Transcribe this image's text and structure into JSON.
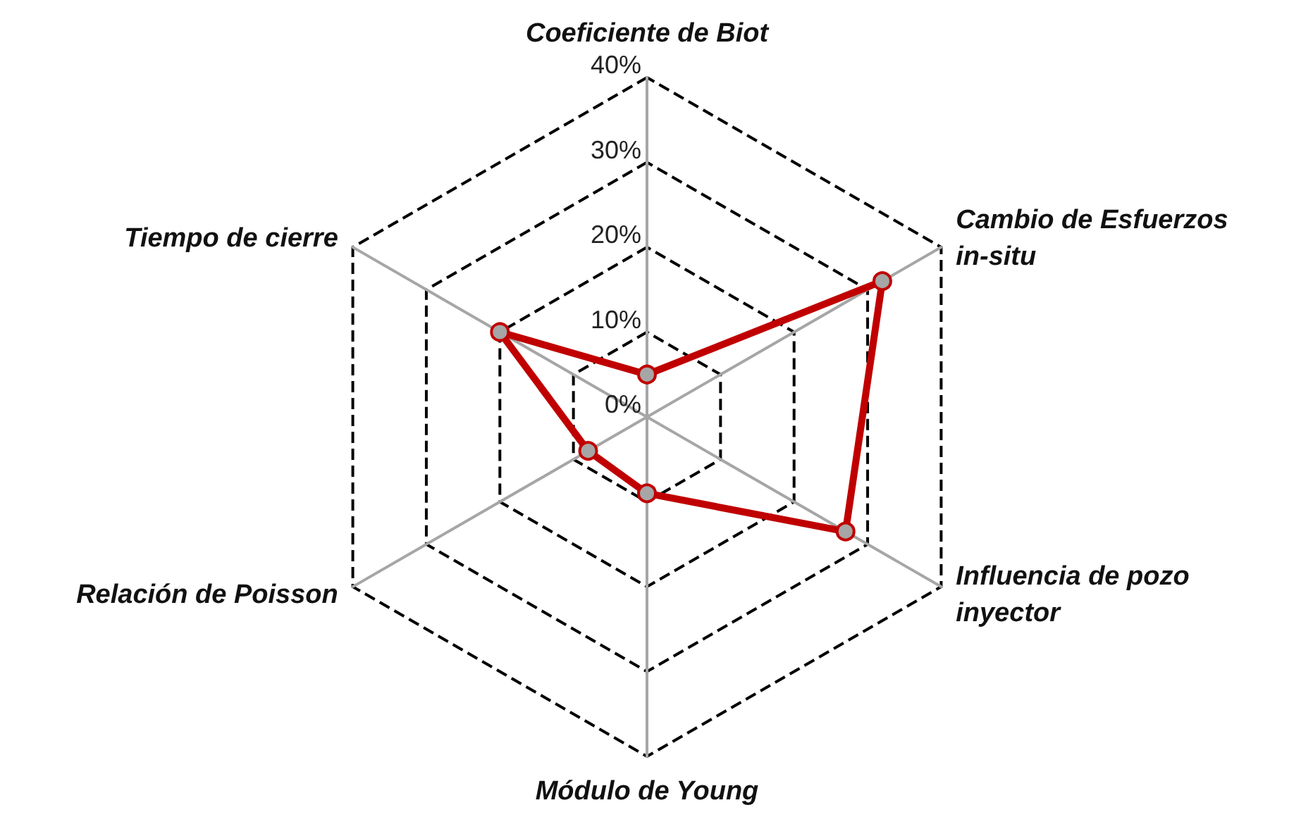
{
  "chart_data": {
    "type": "radar",
    "categories": [
      "Coeficiente de Biot",
      "Cambio de Esfuerzos\nin-situ",
      "Influencia de pozo\ninyector",
      "Módulo de Young",
      "Relación de Poisson",
      "Tiempo de cierre"
    ],
    "series": [
      {
        "color": "#c00000",
        "values": [
          5,
          32,
          27,
          9,
          8,
          20
        ]
      }
    ],
    "ylim": [
      0,
      40
    ],
    "yticks": [
      {
        "value": 0,
        "label": "0%"
      },
      {
        "value": 10,
        "label": "10%"
      },
      {
        "value": 20,
        "label": "20%"
      },
      {
        "value": 30,
        "label": "30%"
      },
      {
        "value": 40,
        "label": "40%"
      }
    ],
    "grid": true,
    "marker": "circle",
    "line_style": "solid"
  }
}
